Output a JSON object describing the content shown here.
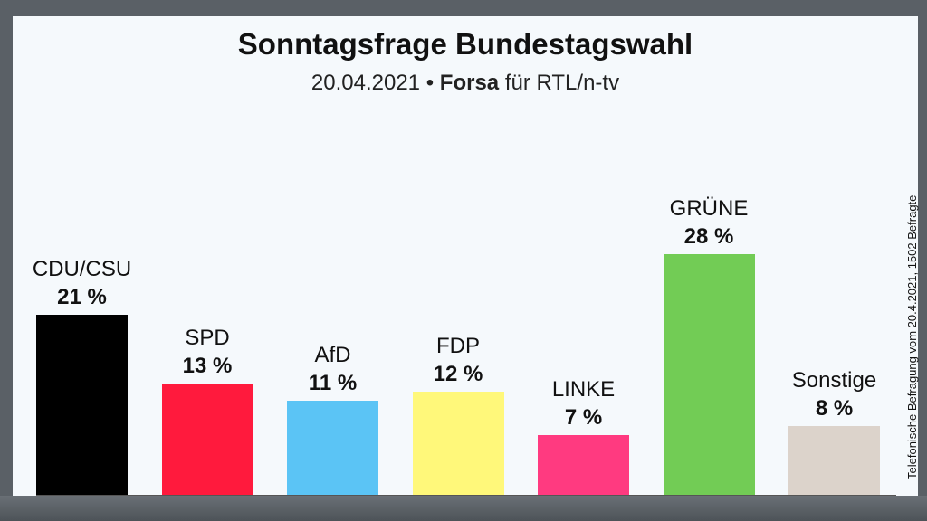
{
  "header": {
    "title": "Sonntagsfrage Bundestagswahl",
    "date": "20.04.2021",
    "separator": "•",
    "institute": "Forsa",
    "client": "für RTL/n-tv"
  },
  "source_note": "Telefonische Befragung vom 20.4.2021, 1502 Befragte",
  "chart_data": {
    "type": "bar",
    "title": "Sonntagsfrage Bundestagswahl",
    "subtitle": "20.04.2021 • Forsa für RTL/n-tv",
    "xlabel": "",
    "ylabel": "",
    "ylim": [
      0,
      30
    ],
    "unit": "%",
    "categories": [
      "CDU/CSU",
      "SPD",
      "AfD",
      "FDP",
      "LINKE",
      "GRÜNE",
      "Sonstige"
    ],
    "values": [
      21,
      13,
      11,
      12,
      7,
      28,
      8
    ],
    "value_labels": [
      "21 %",
      "13 %",
      "11 %",
      "12 %",
      "7 %",
      "28 %",
      "8 %"
    ],
    "colors": [
      "#000000",
      "#ff1a3d",
      "#5bc4f5",
      "#fff87a",
      "#ff3a80",
      "#72cc55",
      "#dcd3cb"
    ]
  }
}
